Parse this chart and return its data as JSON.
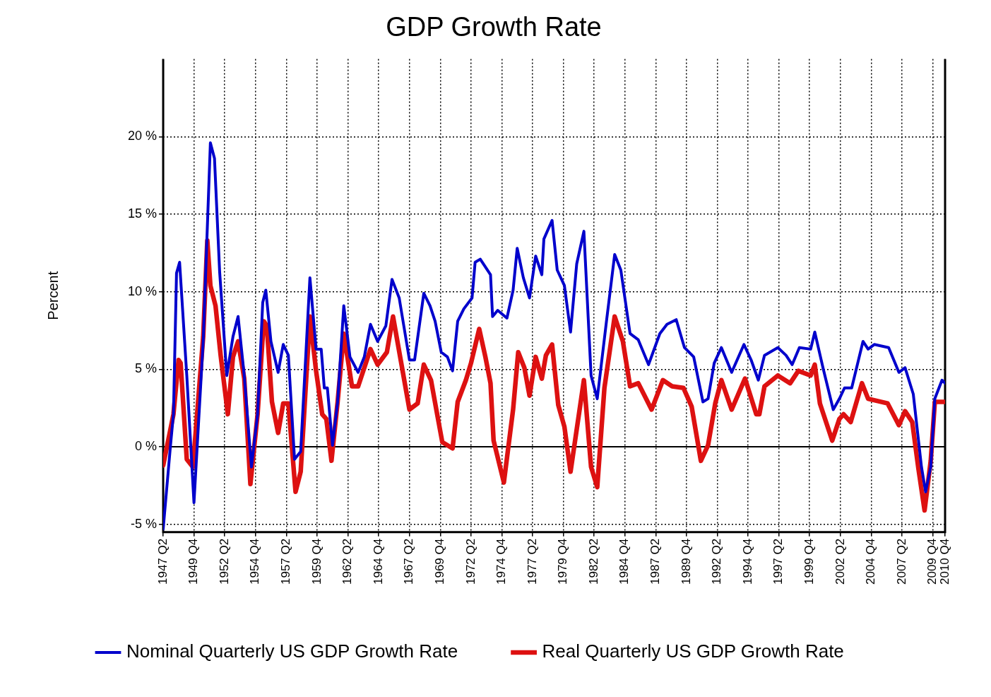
{
  "chart_data": {
    "type": "line",
    "title": "GDP Growth Rate",
    "ylabel": "Percent",
    "xlim": [
      "1947-04",
      "2010-10"
    ],
    "xticks": [
      {
        "value": "1947-04",
        "label": "1947 Q2"
      },
      {
        "value": "1949-10",
        "label": "1949 Q4"
      },
      {
        "value": "1952-04",
        "label": "1952 Q2"
      },
      {
        "value": "1954-10",
        "label": "1954 Q4"
      },
      {
        "value": "1957-04",
        "label": "1957 Q2"
      },
      {
        "value": "1959-10",
        "label": "1959 Q4"
      },
      {
        "value": "1962-04",
        "label": "1962 Q2"
      },
      {
        "value": "1964-10",
        "label": "1964 Q4"
      },
      {
        "value": "1967-04",
        "label": "1967 Q2"
      },
      {
        "value": "1969-10",
        "label": "1969 Q4"
      },
      {
        "value": "1972-04",
        "label": "1972 Q2"
      },
      {
        "value": "1974-10",
        "label": "1974 Q4"
      },
      {
        "value": "1977-04",
        "label": "1977 Q2"
      },
      {
        "value": "1979-10",
        "label": "1979 Q4"
      },
      {
        "value": "1982-04",
        "label": "1982 Q2"
      },
      {
        "value": "1984-10",
        "label": "1984 Q4"
      },
      {
        "value": "1987-04",
        "label": "1987 Q2"
      },
      {
        "value": "1989-10",
        "label": "1989 Q4"
      },
      {
        "value": "1992-04",
        "label": "1992 Q2"
      },
      {
        "value": "1994-10",
        "label": "1994 Q4"
      },
      {
        "value": "1997-04",
        "label": "1997 Q2"
      },
      {
        "value": "1999-10",
        "label": "1999 Q4"
      },
      {
        "value": "2002-04",
        "label": "2002 Q2"
      },
      {
        "value": "2004-10",
        "label": "2004 Q4"
      },
      {
        "value": "2007-04",
        "label": "2007 Q2"
      },
      {
        "value": "2009-10",
        "label": "2009 Q4"
      },
      {
        "value": "2010-10",
        "label": "2010 Q4"
      }
    ],
    "ylim": [
      -5.5,
      25
    ],
    "yticks": [
      {
        "value": -5,
        "label": "-5 %"
      },
      {
        "value": 0,
        "label": "0 %"
      },
      {
        "value": 5,
        "label": "5 %"
      },
      {
        "value": 10,
        "label": "10 %"
      },
      {
        "value": 15,
        "label": "15 %"
      },
      {
        "value": 20,
        "label": "20 %"
      }
    ],
    "grid": true,
    "legend": "bottom",
    "line_style": "solid",
    "ref_lines": [
      {
        "axis": "y",
        "value": 0,
        "color": "#000000"
      }
    ],
    "series": [
      {
        "name": "Nominal Quarterly US GDP Growth Rate",
        "color": "#0000cc",
        "x": [
          "1947-04",
          "1947-11",
          "1948-02",
          "1948-05",
          "1948-08",
          "1949-03",
          "1949-10",
          "1950-07",
          "1951-02",
          "1951-06",
          "1951-11",
          "1952-06",
          "1952-12",
          "1953-05",
          "1953-11",
          "1954-06",
          "1954-12",
          "1955-05",
          "1955-08",
          "1956-01",
          "1956-08",
          "1957-01",
          "1957-06",
          "1957-12",
          "1958-06",
          "1959-03",
          "1959-09",
          "1960-02",
          "1960-05",
          "1960-08",
          "1961-01",
          "1961-06",
          "1961-12",
          "1962-06",
          "1963-02",
          "1963-08",
          "1964-02",
          "1964-09",
          "1965-05",
          "1965-11",
          "1966-06",
          "1967-04",
          "1967-09",
          "1968-06",
          "1968-12",
          "1969-05",
          "1969-11",
          "1970-05",
          "1970-10",
          "1971-03",
          "1971-09",
          "1972-05",
          "1972-08",
          "1973-01",
          "1973-11",
          "1974-01",
          "1974-06",
          "1975-03",
          "1975-09",
          "1976-01",
          "1976-07",
          "1977-01",
          "1977-07",
          "1978-01",
          "1978-03",
          "1978-11",
          "1979-04",
          "1979-11",
          "1980-05",
          "1980-11",
          "1981-06",
          "1982-01",
          "1982-07",
          "1983-04",
          "1983-12",
          "1984-06",
          "1985-03",
          "1985-11",
          "1986-09",
          "1987-08",
          "1988-03",
          "1988-12",
          "1989-08",
          "1990-05",
          "1991-02",
          "1991-07",
          "1992-01",
          "1992-08",
          "1993-06",
          "1994-06",
          "1995-01",
          "1995-08",
          "1996-02",
          "1997-03",
          "1997-11",
          "1998-05",
          "1998-12",
          "1999-11",
          "2000-03",
          "2000-11",
          "2001-09",
          "2002-03",
          "2002-08",
          "2003-03",
          "2004-02",
          "2004-07",
          "2005-01",
          "2006-03",
          "2007-01",
          "2007-07",
          "2008-03",
          "2008-11",
          "2009-03",
          "2009-08",
          "2009-12",
          "2010-07",
          "2010-10"
        ],
        "values": [
          -5.3,
          0,
          2.1,
          11.2,
          11.9,
          4.6,
          -3.6,
          6.8,
          19.6,
          18.6,
          11.3,
          4.6,
          7.1,
          8.4,
          4.6,
          -1.3,
          2.1,
          9.3,
          10.1,
          6.8,
          4.8,
          6.6,
          5.9,
          -0.8,
          -0.3,
          10.9,
          6.3,
          6.3,
          3.8,
          3.8,
          0.1,
          2.9,
          9.1,
          5.8,
          4.8,
          5.8,
          7.9,
          6.8,
          7.8,
          10.8,
          9.6,
          5.6,
          5.6,
          9.9,
          9.1,
          8.1,
          6.1,
          5.8,
          4.9,
          8.1,
          8.9,
          9.6,
          11.9,
          12.1,
          11.1,
          8.4,
          8.8,
          8.3,
          10.1,
          12.8,
          10.9,
          9.6,
          12.3,
          11.1,
          13.4,
          14.6,
          11.4,
          10.4,
          7.4,
          11.8,
          13.9,
          4.6,
          3.1,
          8.1,
          12.4,
          11.4,
          7.3,
          6.9,
          5.3,
          7.3,
          7.9,
          8.2,
          6.4,
          5.8,
          2.9,
          3.1,
          5.4,
          6.4,
          4.8,
          6.6,
          5.6,
          4.3,
          5.9,
          6.4,
          5.9,
          5.3,
          6.4,
          6.3,
          7.4,
          5.1,
          2.4,
          3.1,
          3.8,
          3.8,
          6.8,
          6.3,
          6.6,
          6.4,
          4.8,
          5.1,
          3.4,
          -1.3,
          -2.9,
          -1.3,
          3.1,
          4.3,
          4.1
        ]
      },
      {
        "name": "Real Quarterly US GDP Growth Rate",
        "color": "#dd1111",
        "x": [
          "1947-04",
          "1948-02",
          "1948-07",
          "1948-09",
          "1949-03",
          "1949-09",
          "1950-07",
          "1950-11",
          "1951-02",
          "1951-07",
          "1951-12",
          "1952-07",
          "1952-12",
          "1953-05",
          "1953-11",
          "1954-05",
          "1954-12",
          "1955-06",
          "1955-09",
          "1956-02",
          "1956-08",
          "1957-01",
          "1957-06",
          "1958-01",
          "1958-06",
          "1959-03",
          "1959-09",
          "1960-03",
          "1960-07",
          "1960-12",
          "1961-06",
          "1961-12",
          "1962-08",
          "1963-02",
          "1964-02",
          "1964-09",
          "1965-06",
          "1965-12",
          "1966-08",
          "1967-04",
          "1967-12",
          "1968-06",
          "1969-01",
          "1969-07",
          "1969-12",
          "1970-10",
          "1971-03",
          "1971-11",
          "1972-04",
          "1972-12",
          "1973-06",
          "1973-11",
          "1974-02",
          "1974-12",
          "1975-09",
          "1976-02",
          "1976-08",
          "1977-01",
          "1977-07",
          "1978-01",
          "1978-05",
          "1978-11",
          "1979-05",
          "1979-11",
          "1980-05",
          "1981-06",
          "1982-01",
          "1982-07",
          "1983-02",
          "1983-12",
          "1984-08",
          "1985-03",
          "1985-11",
          "1986-12",
          "1987-11",
          "1988-08",
          "1989-07",
          "1990-03",
          "1990-12",
          "1991-07",
          "1992-02",
          "1992-08",
          "1993-06",
          "1994-07",
          "1995-06",
          "1995-09",
          "1996-02",
          "1997-03",
          "1998-03",
          "1998-11",
          "1999-11",
          "2000-03",
          "2000-08",
          "2001-08",
          "2002-03",
          "2002-07",
          "2003-02",
          "2004-01",
          "2004-07",
          "2006-02",
          "2007-01",
          "2007-07",
          "2008-02",
          "2008-08",
          "2009-02",
          "2009-08",
          "2009-12",
          "2010-09"
        ],
        "values": [
          -1.2,
          2.1,
          5.6,
          5.4,
          -0.8,
          -1.3,
          7.1,
          13.3,
          10.4,
          9.1,
          5.9,
          2.1,
          5.8,
          6.8,
          4.4,
          -2.4,
          2.1,
          8.1,
          7.8,
          2.9,
          0.9,
          2.8,
          2.8,
          -2.9,
          -1.6,
          8.4,
          4.9,
          2.1,
          1.8,
          -0.9,
          2.9,
          7.3,
          3.9,
          3.9,
          6.3,
          5.3,
          6.1,
          8.4,
          5.4,
          2.4,
          2.8,
          5.3,
          4.3,
          2.1,
          0.3,
          -0.1,
          2.9,
          4.3,
          5.4,
          7.6,
          5.8,
          4.1,
          0.4,
          -2.3,
          2.4,
          6.1,
          5.1,
          3.3,
          5.8,
          4.4,
          5.9,
          6.6,
          2.7,
          1.3,
          -1.6,
          4.3,
          -1.3,
          -2.6,
          3.8,
          8.4,
          6.8,
          3.9,
          4.1,
          2.4,
          4.3,
          3.9,
          3.8,
          2.6,
          -0.9,
          0.1,
          2.8,
          4.3,
          2.4,
          4.4,
          2.1,
          2.1,
          3.9,
          4.6,
          4.1,
          4.9,
          4.6,
          5.3,
          2.8,
          0.4,
          1.8,
          2.1,
          1.6,
          4.1,
          3.1,
          2.8,
          1.4,
          2.3,
          1.6,
          -1.4,
          -4.1,
          -0.9,
          2.9,
          2.9
        ]
      }
    ]
  }
}
